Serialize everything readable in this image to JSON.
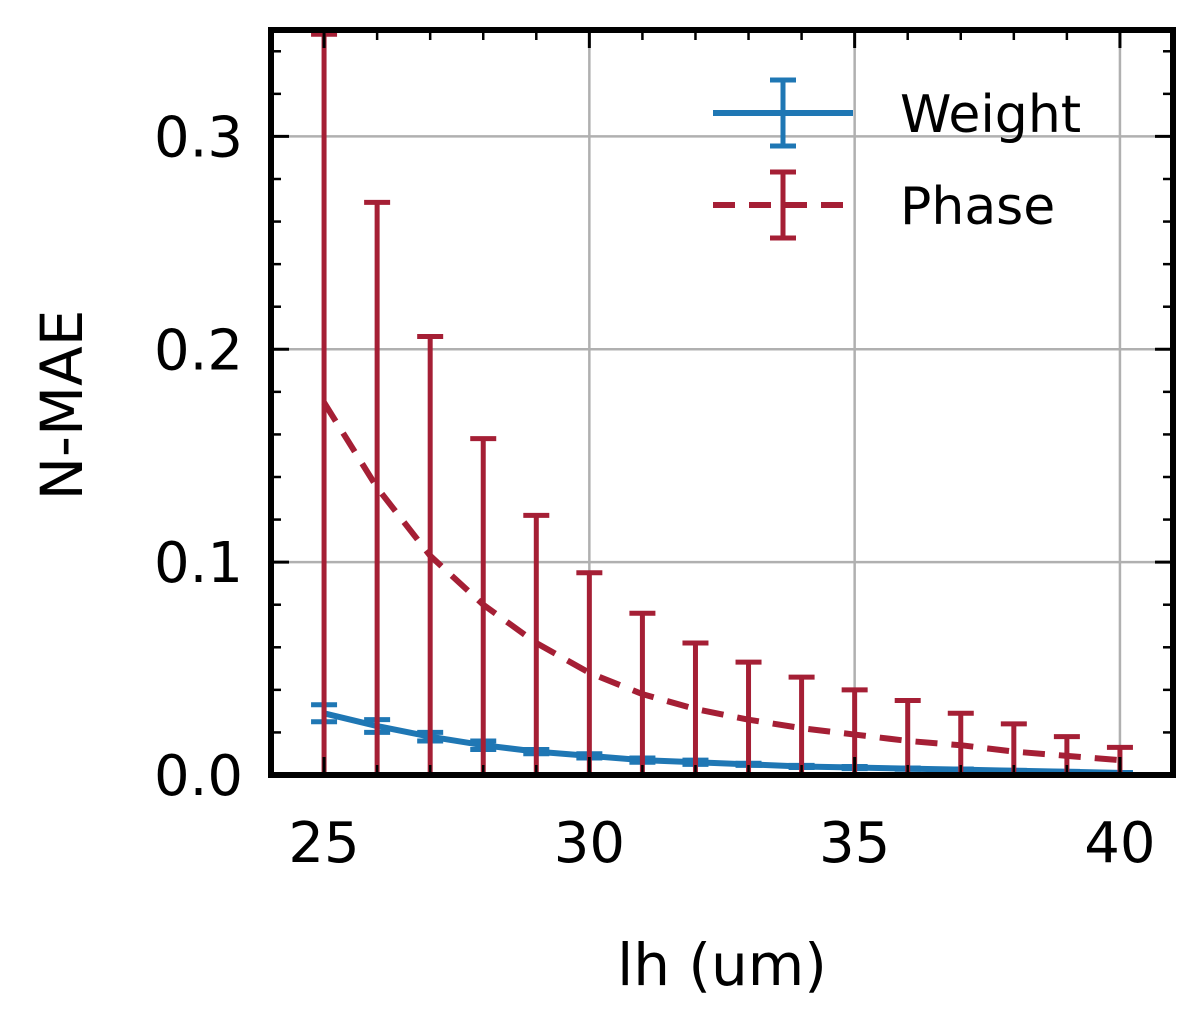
{
  "chart_data": {
    "type": "line",
    "xlabel": "lh (um)",
    "ylabel": "N-MAE",
    "xlim": [
      24,
      41
    ],
    "ylim": [
      0,
      0.35
    ],
    "x_ticks": [
      25,
      30,
      35,
      40
    ],
    "x_tick_labels": [
      "25",
      "30",
      "35",
      "40"
    ],
    "y_ticks": [
      0.0,
      0.1,
      0.2,
      0.3
    ],
    "y_tick_labels": [
      "0.0",
      "0.1",
      "0.2",
      "0.3"
    ],
    "grid": true,
    "legend_position": "top-right",
    "x": [
      25,
      26,
      27,
      28,
      29,
      30,
      31,
      32,
      33,
      34,
      35,
      36,
      37,
      38,
      39,
      40
    ],
    "series": [
      {
        "name": "Weight",
        "color": "#1f77b4",
        "line_style": "solid",
        "values": [
          0.029,
          0.023,
          0.018,
          0.014,
          0.011,
          0.009,
          0.007,
          0.006,
          0.005,
          0.004,
          0.0035,
          0.003,
          0.0025,
          0.002,
          0.0015,
          0.001
        ],
        "error_upper": [
          0.033,
          0.026,
          0.02,
          0.016,
          0.012,
          0.01,
          0.008,
          0.007,
          0.0055,
          0.0045,
          0.004,
          0.0033,
          0.0028,
          0.0022,
          0.0017,
          0.0012
        ],
        "error_lower": [
          0.025,
          0.02,
          0.016,
          0.012,
          0.01,
          0.008,
          0.006,
          0.005,
          0.0045,
          0.0035,
          0.003,
          0.0027,
          0.0022,
          0.0018,
          0.0013,
          0.0008
        ]
      },
      {
        "name": "Phase",
        "color": "#a51f35",
        "line_style": "dashed",
        "values": [
          0.175,
          0.135,
          0.103,
          0.08,
          0.062,
          0.048,
          0.038,
          0.031,
          0.026,
          0.022,
          0.019,
          0.016,
          0.014,
          0.011,
          0.009,
          0.007
        ],
        "error_upper": [
          0.348,
          0.269,
          0.206,
          0.158,
          0.122,
          0.095,
          0.076,
          0.062,
          0.053,
          0.046,
          0.04,
          0.035,
          0.029,
          0.024,
          0.018,
          0.013
        ],
        "error_lower": [
          0.0,
          0.0,
          0.0,
          0.0,
          0.0,
          0.0,
          0.0,
          0.0,
          0.0,
          0.0,
          0.0,
          0.0,
          0.0,
          0.0,
          0.0,
          0.0
        ]
      }
    ]
  }
}
